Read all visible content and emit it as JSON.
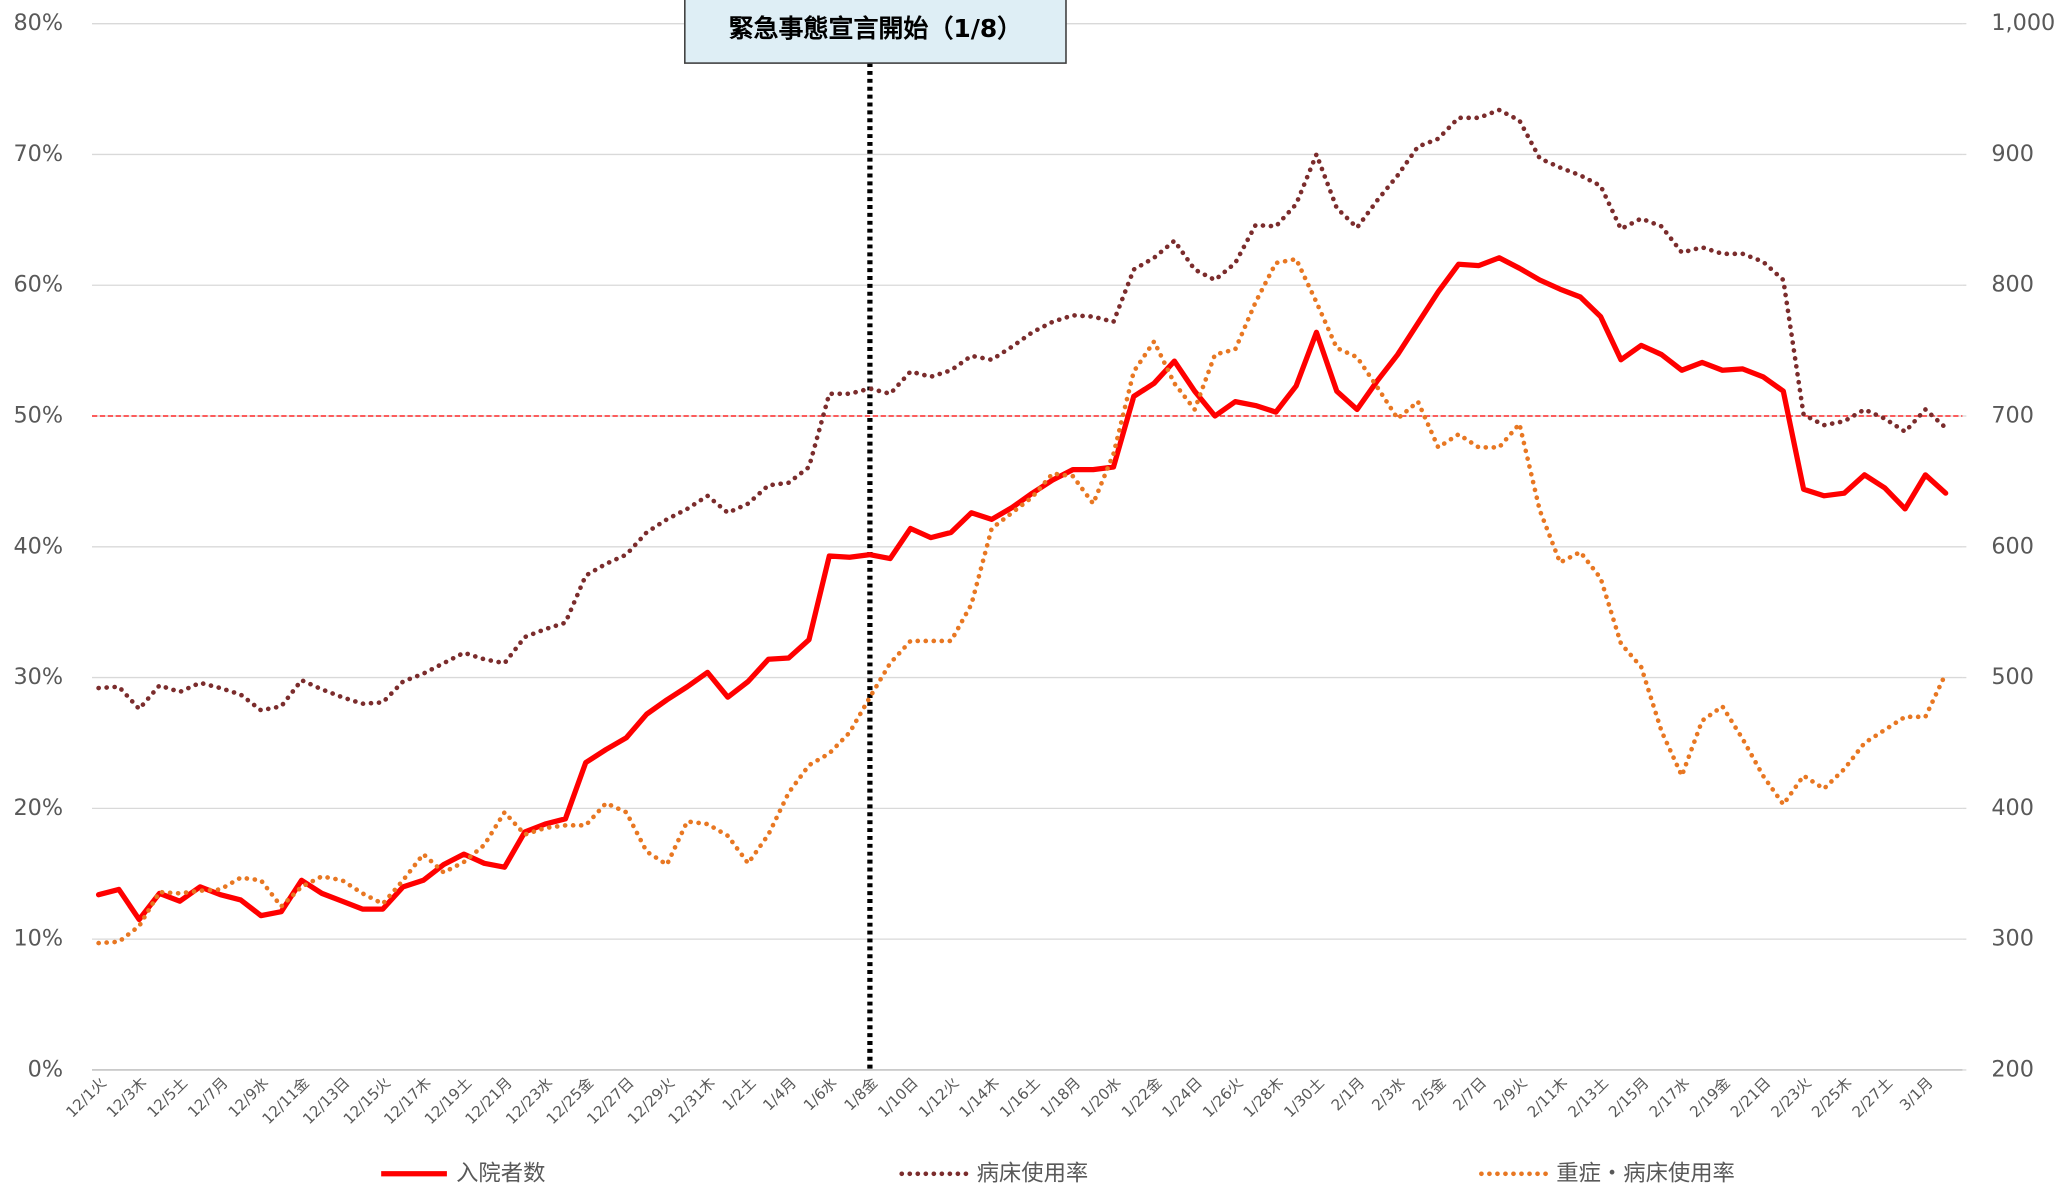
{
  "chart_data": {
    "type": "line",
    "categories": [
      "12/1火",
      null,
      "12/3木",
      null,
      "12/5土",
      null,
      "12/7月",
      null,
      "12/9水",
      null,
      "12/11金",
      null,
      "12/13日",
      null,
      "12/15火",
      null,
      "12/17木",
      null,
      "12/19土",
      null,
      "12/21月",
      null,
      "12/23水",
      null,
      "12/25金",
      null,
      "12/27日",
      null,
      "12/29火",
      null,
      "12/31木",
      null,
      "1/2土",
      null,
      "1/4月",
      null,
      "1/6水",
      null,
      "1/8金",
      null,
      "1/10日",
      null,
      "1/12火",
      null,
      "1/14木",
      null,
      "1/16土",
      null,
      "1/18月",
      null,
      "1/20水",
      null,
      "1/22金",
      null,
      "1/24日",
      null,
      "1/26火",
      null,
      "1/28木",
      null,
      "1/30土",
      null,
      "2/1月",
      null,
      "2/3水",
      null,
      "2/5金",
      null,
      "2/7日",
      null,
      "2/9火",
      null,
      "2/11木",
      null,
      "2/13土",
      null,
      "2/15月",
      null,
      "2/17水",
      null,
      "2/19金",
      null,
      "2/21日",
      null,
      "2/23火",
      null,
      "2/25木",
      null,
      "2/27土",
      null,
      "3/1月",
      null
    ],
    "series": [
      {
        "name": "入院者数",
        "color": "#ff0000",
        "line_style": "solid",
        "axis": "y2",
        "values": [
          334,
          338,
          315,
          335,
          329,
          340,
          334,
          330,
          318,
          321,
          345,
          335,
          329,
          323,
          323,
          340,
          345,
          357,
          365,
          358,
          355,
          382,
          388,
          392,
          435,
          445,
          454,
          472,
          483,
          493,
          504,
          485,
          497,
          514,
          515,
          529,
          593,
          592,
          594,
          591,
          614,
          607,
          611,
          626,
          621,
          630,
          641,
          651,
          659,
          659,
          661,
          715,
          725,
          742,
          719,
          700,
          711,
          708,
          703,
          723,
          764,
          719,
          705,
          727,
          747,
          771,
          795,
          816,
          815,
          821,
          813,
          804,
          797,
          791,
          776,
          743,
          754,
          747,
          735,
          741,
          735,
          736,
          730,
          719,
          644,
          639,
          641,
          655,
          645,
          629,
          655,
          641
        ]
      },
      {
        "name": "病床使用率",
        "color": "#7b2c2c",
        "line_style": "dotted",
        "values": [
          29.2,
          29.3,
          27.6,
          29.4,
          28.9,
          29.6,
          29.2,
          28.7,
          27.5,
          27.8,
          29.8,
          29.1,
          28.5,
          28.0,
          28.1,
          29.7,
          30.3,
          31.1,
          31.9,
          31.4,
          31.1,
          33.1,
          33.7,
          34.2,
          37.8,
          38.7,
          39.4,
          41.1,
          42.1,
          42.9,
          43.9,
          42.6,
          43.3,
          44.7,
          44.9,
          46.1,
          51.7,
          51.7,
          52.1,
          51.7,
          53.4,
          53.0,
          53.5,
          54.6,
          54.3,
          55.3,
          56.4,
          57.2,
          57.7,
          57.6,
          57.2,
          61.2,
          62.1,
          63.4,
          61.2,
          60.4,
          61.7,
          64.6,
          64.5,
          66.2,
          70.0,
          65.9,
          64.4,
          66.5,
          68.4,
          70.6,
          71.2,
          72.8,
          72.8,
          73.4,
          72.6,
          69.7,
          69.0,
          68.4,
          67.6,
          64.3,
          65.1,
          64.5,
          62.5,
          62.9,
          62.4,
          62.4,
          61.8,
          60.4,
          50.1,
          49.3,
          49.6,
          50.5,
          49.8,
          48.8,
          50.5,
          49.1
        ]
      },
      {
        "name": "重症・病床使用率",
        "color": "#e87722",
        "line_style": "dotted",
        "values": [
          9.7,
          9.8,
          11.0,
          13.6,
          13.5,
          13.7,
          13.8,
          14.7,
          14.5,
          12.5,
          14.0,
          14.8,
          14.5,
          13.5,
          12.7,
          14.5,
          16.5,
          15.1,
          15.9,
          17.2,
          19.7,
          18.0,
          18.5,
          18.7,
          18.7,
          20.4,
          19.7,
          16.7,
          15.7,
          19.0,
          18.8,
          17.9,
          15.8,
          18.0,
          21.2,
          23.3,
          24.2,
          25.8,
          28.5,
          31.1,
          32.8,
          32.8,
          32.8,
          35.6,
          41.4,
          42.6,
          43.8,
          45.6,
          45.4,
          43.3,
          47.1,
          53.4,
          55.7,
          52.5,
          50.5,
          54.7,
          55.1,
          58.7,
          61.7,
          62.0,
          58.7,
          55.2,
          54.5,
          52.2,
          49.8,
          51.1,
          47.6,
          48.6,
          47.6,
          47.6,
          49.4,
          42.8,
          38.8,
          39.6,
          37.6,
          32.6,
          30.8,
          25.9,
          22.5,
          26.7,
          27.8,
          25.3,
          22.5,
          20.3,
          22.5,
          21.5,
          23.0,
          25.0,
          26.0,
          27.0,
          27.0,
          30.3
        ]
      }
    ],
    "ylim": [
      0,
      80
    ],
    "yticks": [
      {
        "value": 0,
        "label": "0%"
      },
      {
        "value": 10,
        "label": "10%"
      },
      {
        "value": 20,
        "label": "20%"
      },
      {
        "value": 30,
        "label": "30%"
      },
      {
        "value": 40,
        "label": "40%"
      },
      {
        "value": 50,
        "label": "50%"
      },
      {
        "value": 60,
        "label": "60%"
      },
      {
        "value": 70,
        "label": "70%"
      },
      {
        "value": 80,
        "label": "80%"
      }
    ],
    "y2lim": [
      200,
      1000
    ],
    "y2ticks": [
      200,
      300,
      400,
      500,
      600,
      700,
      800,
      900,
      {
        "value": 1000,
        "label": "1,000"
      }
    ],
    "grid": true,
    "reference_line": {
      "value": 50,
      "color": "#ff0000"
    },
    "annotation": {
      "text": "緊急事態宣言開始（1/8）",
      "x": "1/8金"
    },
    "legend": "bottom"
  }
}
